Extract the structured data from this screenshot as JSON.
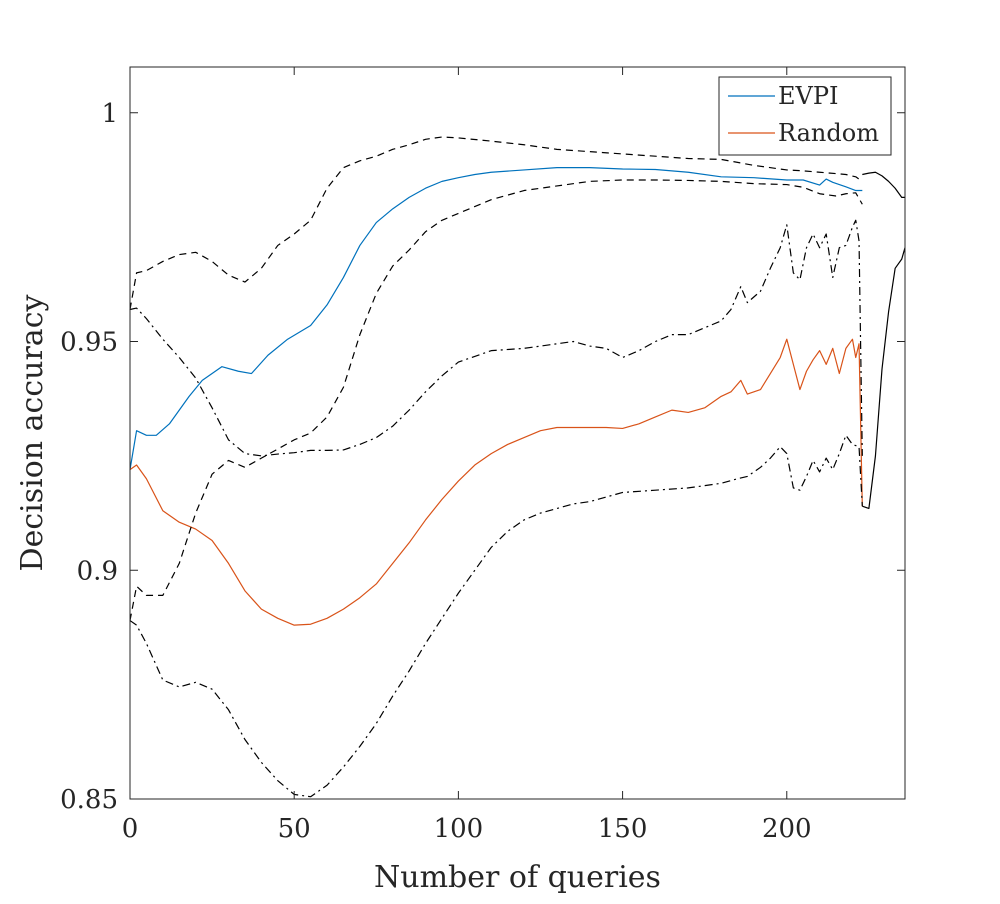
{
  "chart_data": {
    "type": "line",
    "title": "",
    "xlabel": "Number of queries",
    "ylabel": "Decision accuracy",
    "xlim": [
      0,
      236
    ],
    "ylim": [
      0.85,
      1.01
    ],
    "x_ticks": [
      0,
      50,
      100,
      150,
      200
    ],
    "x_tick_labels": [
      "0",
      "50",
      "100",
      "150",
      "200"
    ],
    "y_ticks": [
      0.85,
      0.9,
      0.95,
      1.0
    ],
    "y_tick_labels": [
      "0.85",
      "0.9",
      "0.95",
      "1"
    ],
    "grid": false,
    "legend_position": "top-right",
    "legend": [
      "EVPI",
      "Random"
    ],
    "series": [
      {
        "name": "EVPI",
        "color": "#0072BD",
        "style": "solid",
        "x": [
          0,
          2,
          5,
          8,
          12,
          18,
          22,
          28,
          33,
          37,
          42,
          48,
          55,
          60,
          65,
          70,
          75,
          80,
          85,
          90,
          95,
          100,
          105,
          110,
          120,
          130,
          140,
          150,
          160,
          170,
          180,
          190,
          200,
          205,
          210,
          212,
          214,
          218,
          221,
          223
        ],
        "values": [
          0.922,
          0.9305,
          0.9295,
          0.9295,
          0.932,
          0.938,
          0.9415,
          0.9445,
          0.9435,
          0.943,
          0.947,
          0.9505,
          0.9535,
          0.958,
          0.964,
          0.971,
          0.976,
          0.979,
          0.9815,
          0.9835,
          0.985,
          0.9858,
          0.9865,
          0.987,
          0.9875,
          0.988,
          0.988,
          0.9877,
          0.9876,
          0.987,
          0.986,
          0.9858,
          0.9853,
          0.9853,
          0.9842,
          0.9855,
          0.9848,
          0.9838,
          0.983,
          0.983
        ]
      },
      {
        "name": "Random",
        "color": "#D95319",
        "style": "solid",
        "x": [
          0,
          2,
          5,
          10,
          15,
          20,
          25,
          30,
          35,
          40,
          45,
          50,
          55,
          60,
          65,
          70,
          75,
          80,
          85,
          90,
          95,
          100,
          105,
          110,
          115,
          120,
          125,
          130,
          135,
          140,
          145,
          150,
          155,
          160,
          165,
          170,
          175,
          180,
          183,
          186,
          188,
          192,
          195,
          198,
          200,
          202,
          204,
          206,
          208,
          210,
          212,
          214,
          216,
          218,
          220,
          221,
          222,
          223
        ],
        "values": [
          0.922,
          0.923,
          0.92,
          0.913,
          0.9105,
          0.909,
          0.9065,
          0.9015,
          0.8955,
          0.8915,
          0.8895,
          0.888,
          0.8882,
          0.8895,
          0.8915,
          0.894,
          0.897,
          0.9015,
          0.906,
          0.911,
          0.9155,
          0.9195,
          0.923,
          0.9255,
          0.9275,
          0.929,
          0.9305,
          0.9312,
          0.9312,
          0.9312,
          0.9312,
          0.931,
          0.932,
          0.9335,
          0.935,
          0.9345,
          0.9355,
          0.938,
          0.939,
          0.9415,
          0.9385,
          0.9395,
          0.943,
          0.9465,
          0.9505,
          0.945,
          0.9395,
          0.9435,
          0.946,
          0.948,
          0.945,
          0.9485,
          0.943,
          0.9485,
          0.9505,
          0.9465,
          0.9495,
          0.914
        ]
      },
      {
        "name": "",
        "color": "#000000",
        "style": "dashed",
        "x": [
          0,
          2,
          5,
          10,
          15,
          20,
          25,
          30,
          35,
          40,
          45,
          50,
          55,
          60,
          65,
          70,
          75,
          80,
          85,
          90,
          95,
          100,
          110,
          120,
          130,
          140,
          150,
          160,
          170,
          180,
          190,
          200,
          205,
          210,
          215,
          218,
          221,
          223
        ],
        "values": [
          0.957,
          0.965,
          0.9655,
          0.9675,
          0.969,
          0.9695,
          0.9675,
          0.9645,
          0.963,
          0.966,
          0.971,
          0.9735,
          0.9765,
          0.9835,
          0.988,
          0.9895,
          0.9905,
          0.992,
          0.993,
          0.9942,
          0.9947,
          0.9945,
          0.9938,
          0.993,
          0.992,
          0.9915,
          0.991,
          0.9905,
          0.99,
          0.9898,
          0.9885,
          0.9875,
          0.9873,
          0.987,
          0.9867,
          0.9865,
          0.986,
          0.985
        ]
      },
      {
        "name": "",
        "color": "#000000",
        "style": "dashed",
        "x": [
          0,
          2,
          5,
          10,
          15,
          20,
          25,
          30,
          35,
          40,
          45,
          50,
          55,
          60,
          65,
          70,
          75,
          80,
          85,
          90,
          95,
          100,
          110,
          120,
          130,
          140,
          150,
          160,
          170,
          180,
          190,
          200,
          205,
          210,
          215,
          218,
          221,
          223
        ],
        "values": [
          0.889,
          0.8965,
          0.8945,
          0.8945,
          0.9015,
          0.9125,
          0.921,
          0.924,
          0.9225,
          0.9245,
          0.9265,
          0.9285,
          0.93,
          0.9335,
          0.94,
          0.9515,
          0.9605,
          0.9665,
          0.97,
          0.974,
          0.9765,
          0.978,
          0.981,
          0.983,
          0.984,
          0.985,
          0.9853,
          0.9853,
          0.9852,
          0.985,
          0.9845,
          0.9843,
          0.9837,
          0.9823,
          0.9818,
          0.9823,
          0.9825,
          0.98
        ]
      },
      {
        "name": "",
        "color": "#000000",
        "style": "dashdot",
        "x": [
          0,
          2,
          5,
          10,
          15,
          20,
          25,
          30,
          35,
          40,
          45,
          50,
          55,
          60,
          65,
          70,
          75,
          80,
          85,
          90,
          95,
          100,
          110,
          120,
          130,
          135,
          140,
          145,
          150,
          155,
          160,
          165,
          170,
          175,
          180,
          183,
          186,
          188,
          192,
          195,
          198,
          200,
          202,
          204,
          206,
          208,
          210,
          212,
          214,
          216,
          218,
          220,
          221,
          222,
          223
        ],
        "values": [
          0.957,
          0.9573,
          0.955,
          0.9505,
          0.9465,
          0.942,
          0.9355,
          0.9285,
          0.9255,
          0.925,
          0.9254,
          0.9257,
          0.9262,
          0.9262,
          0.9263,
          0.9275,
          0.929,
          0.9315,
          0.935,
          0.939,
          0.9425,
          0.9455,
          0.948,
          0.9485,
          0.9495,
          0.95,
          0.949,
          0.9485,
          0.9465,
          0.948,
          0.95,
          0.9515,
          0.9515,
          0.953,
          0.9545,
          0.957,
          0.962,
          0.9585,
          0.961,
          0.966,
          0.9705,
          0.9755,
          0.965,
          0.9635,
          0.9705,
          0.9735,
          0.9705,
          0.9735,
          0.964,
          0.9705,
          0.971,
          0.975,
          0.9765,
          0.972,
          0.925
        ]
      },
      {
        "name": "",
        "color": "#000000",
        "style": "dashdot",
        "x": [
          0,
          2,
          5,
          10,
          15,
          20,
          25,
          30,
          35,
          40,
          45,
          50,
          55,
          60,
          65,
          70,
          75,
          80,
          85,
          90,
          95,
          100,
          105,
          110,
          115,
          120,
          125,
          130,
          135,
          140,
          145,
          150,
          160,
          170,
          180,
          185,
          188,
          192,
          195,
          198,
          200,
          202,
          204,
          206,
          208,
          210,
          212,
          214,
          216,
          218,
          220,
          222,
          223
        ],
        "values": [
          0.889,
          0.888,
          0.884,
          0.876,
          0.8745,
          0.8755,
          0.874,
          0.8695,
          0.863,
          0.858,
          0.854,
          0.851,
          0.8505,
          0.853,
          0.857,
          0.8615,
          0.8665,
          0.8725,
          0.878,
          0.884,
          0.8895,
          0.895,
          0.9,
          0.905,
          0.9085,
          0.911,
          0.9125,
          0.9135,
          0.9145,
          0.915,
          0.916,
          0.917,
          0.9175,
          0.918,
          0.919,
          0.92,
          0.9205,
          0.9225,
          0.9245,
          0.927,
          0.9255,
          0.918,
          0.9175,
          0.9205,
          0.924,
          0.9215,
          0.9245,
          0.922,
          0.9255,
          0.9295,
          0.9275,
          0.927,
          0.914
        ]
      },
      {
        "name": "",
        "color": "#000000",
        "style": "solid",
        "x": [
          223,
          225,
          227,
          229,
          231,
          233,
          235,
          236
        ],
        "values": [
          0.914,
          0.9135,
          0.925,
          0.944,
          0.9565,
          0.966,
          0.968,
          0.9705
        ]
      },
      {
        "name": "",
        "color": "#000000",
        "style": "solid",
        "x": [
          223,
          225,
          227,
          229,
          231,
          233,
          235,
          236
        ],
        "values": [
          0.9865,
          0.9868,
          0.987,
          0.9862,
          0.985,
          0.9835,
          0.9815,
          0.9815
        ]
      }
    ]
  }
}
